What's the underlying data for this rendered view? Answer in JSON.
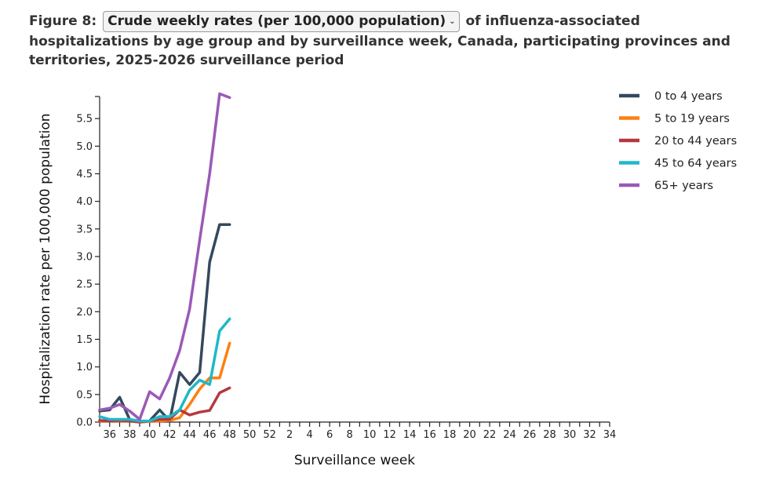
{
  "title": {
    "prefix": "Figure 8:",
    "selected_measure": "Crude weekly rates (per 100,000 population)",
    "suffix": "of influenza-associated hospitalizations by age group and by surveillance week, Canada, participating provinces and territories, 2025-2026 surveillance period"
  },
  "chart_data": {
    "type": "line",
    "xlabel": "Surveillance week",
    "ylabel": "Hospitalization rate per 100,000 population",
    "ylim": [
      0,
      5.9
    ],
    "yticks": [
      "0.0",
      "0.5",
      "1.0",
      "1.5",
      "2.0",
      "2.5",
      "3.0",
      "3.5",
      "4.0",
      "4.5",
      "5.0",
      "5.5"
    ],
    "ytick_values": [
      0,
      0.5,
      1.0,
      1.5,
      2.0,
      2.5,
      3.0,
      3.5,
      4.0,
      4.5,
      5.0,
      5.5
    ],
    "x_weeks": [
      35,
      36,
      37,
      38,
      39,
      40,
      41,
      42,
      43,
      44,
      45,
      46,
      47,
      48,
      49,
      50,
      51,
      52,
      1,
      2,
      3,
      4,
      5,
      6,
      7,
      8,
      9,
      10,
      11,
      12,
      13,
      14,
      15,
      16,
      17,
      18,
      19,
      20,
      21,
      22,
      23,
      24,
      25,
      26,
      27,
      28,
      29,
      30,
      31,
      32,
      33,
      34
    ],
    "x_tick_labels": [
      "36",
      "38",
      "40",
      "42",
      "44",
      "46",
      "48",
      "50",
      "52",
      "2",
      "4",
      "6",
      "8",
      "10",
      "12",
      "14",
      "16",
      "18",
      "20",
      "22",
      "24",
      "26",
      "28",
      "30",
      "32",
      "34"
    ],
    "legend_position": "right",
    "series": [
      {
        "name": "0 to 4 years",
        "color": "#34495e",
        "values": [
          0.2,
          0.22,
          0.45,
          0.05,
          0.0,
          0.02,
          0.22,
          0.02,
          0.9,
          0.68,
          0.9,
          2.9,
          3.58,
          3.58
        ]
      },
      {
        "name": "5 to 19 years",
        "color": "#ff7f0e",
        "values": [
          0.02,
          0.02,
          0.02,
          0.02,
          0.0,
          0.01,
          0.02,
          0.03,
          0.08,
          0.32,
          0.6,
          0.8,
          0.8,
          1.43
        ]
      },
      {
        "name": "20 to 44 years",
        "color": "#b5383f",
        "values": [
          0.03,
          0.02,
          0.03,
          0.02,
          0.0,
          0.02,
          0.05,
          0.05,
          0.22,
          0.13,
          0.18,
          0.21,
          0.53,
          0.62
        ]
      },
      {
        "name": "45 to 64 years",
        "color": "#1fb8c9",
        "values": [
          0.1,
          0.05,
          0.05,
          0.05,
          0.02,
          0.02,
          0.1,
          0.1,
          0.22,
          0.58,
          0.76,
          0.68,
          1.65,
          1.87
        ]
      },
      {
        "name": "65+ years",
        "color": "#9b59b6",
        "values": [
          0.22,
          0.25,
          0.32,
          0.2,
          0.05,
          0.55,
          0.42,
          0.8,
          1.3,
          2.05,
          3.3,
          4.5,
          5.95,
          5.88
        ]
      }
    ]
  }
}
